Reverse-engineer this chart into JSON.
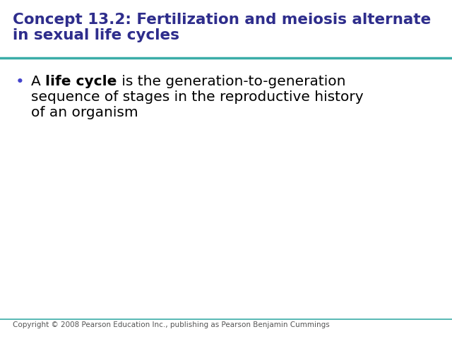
{
  "title_line1": "Concept 13.2: Fertilization and meiosis alternate",
  "title_line2": "in sexual life cycles",
  "title_color": "#2E2D8C",
  "title_fontsize": 15.5,
  "divider_color": "#3AADA8",
  "bullet_color": "#4444CC",
  "body_fontsize": 14.5,
  "copyright_text": "Copyright © 2008 Pearson Education Inc., publishing as Pearson Benjamin Cummings",
  "copyright_fontsize": 7.5,
  "copyright_color": "#555555",
  "footer_line_color": "#3AADA8",
  "bg_color": "#FFFFFF"
}
